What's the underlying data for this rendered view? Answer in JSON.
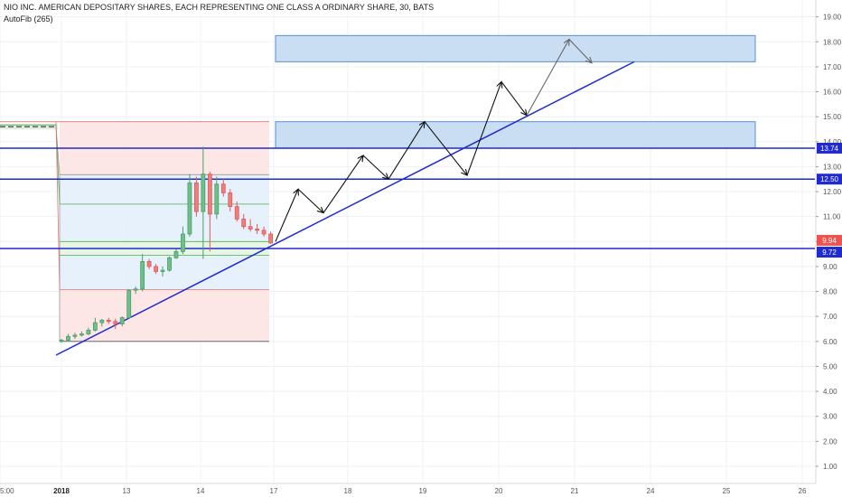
{
  "chart_data": {
    "type": "candlestick",
    "title": "NIO INC. AMERICAN DEPOSITARY SHARES, EACH REPRESENTING ONE CLASS A ORDINARY SHARE, 30, BATS",
    "indicator": "AutoFib (265)",
    "y_ticks": [
      "19.00",
      "18.00",
      "17.00",
      "16.00",
      "15.00",
      "14.00",
      "13.00",
      "12.00",
      "11.00",
      "10.00",
      "9.00",
      "8.00",
      "7.00",
      "6.00",
      "5.00",
      "4.00",
      "3.00",
      "2.00",
      "1.00"
    ],
    "x_ticks": [
      "5:00",
      "2018",
      "13",
      "14",
      "17",
      "18",
      "19",
      "20",
      "21",
      "24",
      "25",
      "26"
    ],
    "ylim": [
      0.3,
      19.4
    ],
    "grid": true,
    "price_labels": [
      {
        "text": "13.74",
        "value": 13.74,
        "color": "#1f2bd1"
      },
      {
        "text": "12.50",
        "value": 12.5,
        "color": "#1f2bd1"
      },
      {
        "text": "9.94",
        "value": 9.94,
        "color": "#ef5350"
      },
      {
        "text": "9.72",
        "value": 9.72,
        "color": "#1f2bd1"
      }
    ],
    "horizontal_lines": [
      13.74,
      12.5,
      9.72
    ],
    "fib_levels": [
      14.8,
      12.68,
      11.5,
      10.0,
      9.45,
      8.07,
      6.0
    ],
    "pre_ipo_level": 14.6,
    "trendline": {
      "start": {
        "day": "2018",
        "price": 5.45
      },
      "end": {
        "day": "21+",
        "price": 17.2
      }
    },
    "zones": [
      {
        "top": 18.25,
        "bottom": 17.2,
        "color": "#c9def2"
      },
      {
        "top": 14.8,
        "bottom": 13.74,
        "color": "#c9def2"
      }
    ],
    "projection_path": [
      10.0,
      12.1,
      11.15,
      13.45,
      12.5,
      14.8,
      12.65,
      16.4,
      15.05,
      18.1,
      17.15
    ],
    "candles": [
      {
        "o": 6.0,
        "h": 6.1,
        "l": 5.95,
        "c": 6.05
      },
      {
        "o": 6.05,
        "h": 6.3,
        "l": 6.0,
        "c": 6.2
      },
      {
        "o": 6.2,
        "h": 6.35,
        "l": 6.1,
        "c": 6.25
      },
      {
        "o": 6.25,
        "h": 6.4,
        "l": 6.2,
        "c": 6.3
      },
      {
        "o": 6.3,
        "h": 6.55,
        "l": 6.25,
        "c": 6.45
      },
      {
        "o": 6.45,
        "h": 6.95,
        "l": 6.4,
        "c": 6.75
      },
      {
        "o": 6.75,
        "h": 6.9,
        "l": 6.6,
        "c": 6.85
      },
      {
        "o": 6.85,
        "h": 6.95,
        "l": 6.7,
        "c": 6.8
      },
      {
        "o": 6.8,
        "h": 6.9,
        "l": 6.5,
        "c": 6.7
      },
      {
        "o": 6.7,
        "h": 7.0,
        "l": 6.6,
        "c": 6.95
      },
      {
        "o": 6.95,
        "h": 8.1,
        "l": 6.9,
        "c": 8.05
      },
      {
        "o": 8.05,
        "h": 8.2,
        "l": 7.9,
        "c": 8.1
      },
      {
        "o": 8.1,
        "h": 9.5,
        "l": 8.0,
        "c": 9.2
      },
      {
        "o": 9.2,
        "h": 9.3,
        "l": 8.9,
        "c": 9.0
      },
      {
        "o": 9.0,
        "h": 9.1,
        "l": 8.7,
        "c": 8.8
      },
      {
        "o": 8.8,
        "h": 9.0,
        "l": 8.6,
        "c": 8.85
      },
      {
        "o": 8.85,
        "h": 9.4,
        "l": 8.8,
        "c": 9.35
      },
      {
        "o": 9.35,
        "h": 9.7,
        "l": 9.3,
        "c": 9.6
      },
      {
        "o": 9.6,
        "h": 10.6,
        "l": 9.5,
        "c": 10.3
      },
      {
        "o": 10.3,
        "h": 12.7,
        "l": 10.2,
        "c": 12.35
      },
      {
        "o": 12.35,
        "h": 12.6,
        "l": 11.0,
        "c": 11.2
      },
      {
        "o": 11.2,
        "h": 13.8,
        "l": 9.3,
        "c": 12.7
      },
      {
        "o": 12.7,
        "h": 12.8,
        "l": 9.6,
        "c": 11.1
      },
      {
        "o": 11.1,
        "h": 12.6,
        "l": 10.9,
        "c": 12.3
      },
      {
        "o": 12.3,
        "h": 12.5,
        "l": 11.8,
        "c": 11.95
      },
      {
        "o": 11.95,
        "h": 12.1,
        "l": 11.2,
        "c": 11.4
      },
      {
        "o": 11.4,
        "h": 11.6,
        "l": 10.8,
        "c": 10.9
      },
      {
        "o": 10.9,
        "h": 11.1,
        "l": 10.5,
        "c": 10.6
      },
      {
        "o": 10.6,
        "h": 10.9,
        "l": 10.4,
        "c": 10.5
      },
      {
        "o": 10.5,
        "h": 10.7,
        "l": 10.3,
        "c": 10.45
      },
      {
        "o": 10.45,
        "h": 10.6,
        "l": 10.2,
        "c": 10.3
      },
      {
        "o": 10.3,
        "h": 10.4,
        "l": 9.9,
        "c": 9.94
      }
    ]
  }
}
